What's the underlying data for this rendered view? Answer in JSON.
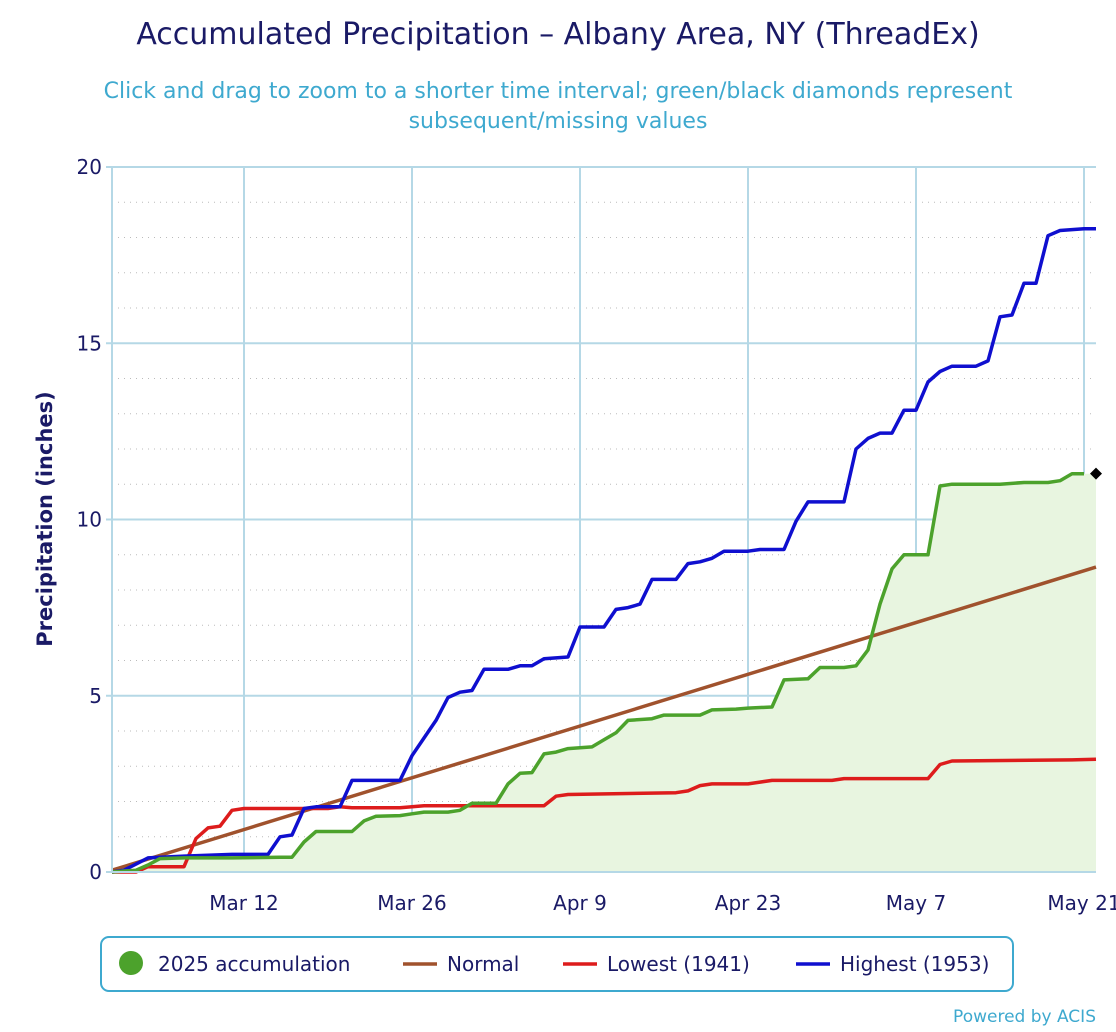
{
  "chart_data": {
    "type": "line",
    "title": "Accumulated Precipitation – Albany Area, NY (ThreadEx)",
    "subtitle_lines": [
      "Click and drag to zoom to a shorter time interval; green/black diamonds represent",
      "subsequent/missing values"
    ],
    "ylabel": "Precipitation (inches)",
    "xlabel": "",
    "ylim": [
      0,
      20
    ],
    "y_ticks": [
      0,
      5,
      10,
      15,
      20
    ],
    "x_range": [
      "Mar 1",
      "May 22"
    ],
    "x_ticks": [
      {
        "label": "Mar 12",
        "day": 11
      },
      {
        "label": "Mar 26",
        "day": 25
      },
      {
        "label": "Apr 9",
        "day": 39
      },
      {
        "label": "Apr 23",
        "day": 53
      },
      {
        "label": "May 7",
        "day": 67
      },
      {
        "label": "May 21",
        "day": 81
      }
    ],
    "grid": true,
    "legend_position": "bottom",
    "series": [
      {
        "name": "2025 accumulation",
        "color": "#4ca22c",
        "fill": "#e8f5e0",
        "legend_marker": "circle",
        "points": [
          [
            0,
            0
          ],
          [
            2,
            0.05
          ],
          [
            3,
            0.2
          ],
          [
            4,
            0.38
          ],
          [
            6,
            0.4
          ],
          [
            10,
            0.4
          ],
          [
            14,
            0.42
          ],
          [
            15,
            0.42
          ],
          [
            16,
            0.85
          ],
          [
            17,
            1.15
          ],
          [
            18,
            1.15
          ],
          [
            19,
            1.15
          ],
          [
            20,
            1.15
          ],
          [
            21,
            1.45
          ],
          [
            22,
            1.58
          ],
          [
            24,
            1.6
          ],
          [
            25,
            1.65
          ],
          [
            26,
            1.7
          ],
          [
            28,
            1.7
          ],
          [
            29,
            1.75
          ],
          [
            30,
            1.95
          ],
          [
            32,
            1.95
          ],
          [
            33,
            2.5
          ],
          [
            34,
            2.8
          ],
          [
            35,
            2.82
          ],
          [
            36,
            3.35
          ],
          [
            37,
            3.4
          ],
          [
            38,
            3.5
          ],
          [
            40,
            3.55
          ],
          [
            41,
            3.75
          ],
          [
            42,
            3.95
          ],
          [
            43,
            4.3
          ],
          [
            45,
            4.35
          ],
          [
            46,
            4.45
          ],
          [
            49,
            4.45
          ],
          [
            50,
            4.6
          ],
          [
            52,
            4.62
          ],
          [
            53,
            4.65
          ],
          [
            55,
            4.68
          ],
          [
            56,
            5.45
          ],
          [
            58,
            5.48
          ],
          [
            59,
            5.8
          ],
          [
            61,
            5.8
          ],
          [
            62,
            5.85
          ],
          [
            63,
            6.3
          ],
          [
            64,
            7.6
          ],
          [
            65,
            8.6
          ],
          [
            66,
            9.0
          ],
          [
            68,
            9.0
          ],
          [
            69,
            10.95
          ],
          [
            70,
            11.0
          ],
          [
            72,
            11.0
          ],
          [
            74,
            11.0
          ],
          [
            76,
            11.05
          ],
          [
            78,
            11.05
          ],
          [
            79,
            11.1
          ],
          [
            80,
            11.3
          ],
          [
            81,
            11.3
          ]
        ],
        "missing_marker": {
          "day": 82,
          "value": 11.3,
          "color": "#000000"
        }
      },
      {
        "name": "Normal",
        "color": "#a0522d",
        "legend_marker": "line",
        "points": [
          [
            0,
            0.05
          ],
          [
            82,
            8.65
          ]
        ]
      },
      {
        "name": "Lowest (1941)",
        "color": "#dd1c1c",
        "legend_marker": "line",
        "points": [
          [
            0,
            0
          ],
          [
            2,
            0
          ],
          [
            3,
            0.15
          ],
          [
            6,
            0.15
          ],
          [
            7,
            0.95
          ],
          [
            8,
            1.25
          ],
          [
            9,
            1.3
          ],
          [
            10,
            1.75
          ],
          [
            11,
            1.8
          ],
          [
            18,
            1.8
          ],
          [
            19,
            1.85
          ],
          [
            20,
            1.82
          ],
          [
            24,
            1.82
          ],
          [
            26,
            1.88
          ],
          [
            36,
            1.88
          ],
          [
            37,
            2.15
          ],
          [
            38,
            2.2
          ],
          [
            47,
            2.25
          ],
          [
            48,
            2.3
          ],
          [
            49,
            2.45
          ],
          [
            50,
            2.5
          ],
          [
            53,
            2.5
          ],
          [
            54,
            2.55
          ],
          [
            55,
            2.6
          ],
          [
            60,
            2.6
          ],
          [
            61,
            2.65
          ],
          [
            68,
            2.65
          ],
          [
            69,
            3.05
          ],
          [
            70,
            3.15
          ],
          [
            80,
            3.18
          ],
          [
            82,
            3.2
          ]
        ]
      },
      {
        "name": "Highest (1953)",
        "color": "#0f0fcf",
        "legend_marker": "line",
        "points": [
          [
            0,
            0
          ],
          [
            1,
            0.05
          ],
          [
            3,
            0.4
          ],
          [
            6,
            0.45
          ],
          [
            10,
            0.5
          ],
          [
            13,
            0.5
          ],
          [
            14,
            1.0
          ],
          [
            15,
            1.05
          ],
          [
            16,
            1.8
          ],
          [
            17,
            1.85
          ],
          [
            19,
            1.85
          ],
          [
            20,
            2.6
          ],
          [
            22,
            2.6
          ],
          [
            24,
            2.6
          ],
          [
            25,
            3.3
          ],
          [
            26,
            3.8
          ],
          [
            27,
            4.3
          ],
          [
            28,
            4.95
          ],
          [
            29,
            5.1
          ],
          [
            30,
            5.15
          ],
          [
            31,
            5.75
          ],
          [
            32,
            5.75
          ],
          [
            33,
            5.75
          ],
          [
            34,
            5.85
          ],
          [
            35,
            5.85
          ],
          [
            36,
            6.05
          ],
          [
            38,
            6.1
          ],
          [
            39,
            6.95
          ],
          [
            41,
            6.95
          ],
          [
            42,
            7.45
          ],
          [
            43,
            7.5
          ],
          [
            44,
            7.6
          ],
          [
            45,
            8.3
          ],
          [
            47,
            8.3
          ],
          [
            48,
            8.75
          ],
          [
            49,
            8.8
          ],
          [
            50,
            8.9
          ],
          [
            51,
            9.1
          ],
          [
            53,
            9.1
          ],
          [
            54,
            9.15
          ],
          [
            56,
            9.15
          ],
          [
            57,
            9.95
          ],
          [
            58,
            10.5
          ],
          [
            61,
            10.5
          ],
          [
            62,
            12.0
          ],
          [
            63,
            12.3
          ],
          [
            64,
            12.45
          ],
          [
            65,
            12.45
          ],
          [
            66,
            13.1
          ],
          [
            67,
            13.1
          ],
          [
            68,
            13.9
          ],
          [
            69,
            14.2
          ],
          [
            70,
            14.35
          ],
          [
            72,
            14.35
          ],
          [
            73,
            14.5
          ],
          [
            74,
            15.75
          ],
          [
            75,
            15.8
          ],
          [
            76,
            16.7
          ],
          [
            77,
            16.7
          ],
          [
            78,
            18.05
          ],
          [
            79,
            18.2
          ],
          [
            81,
            18.25
          ],
          [
            82,
            18.25
          ]
        ]
      }
    ],
    "credit": "Powered by ACIS"
  }
}
